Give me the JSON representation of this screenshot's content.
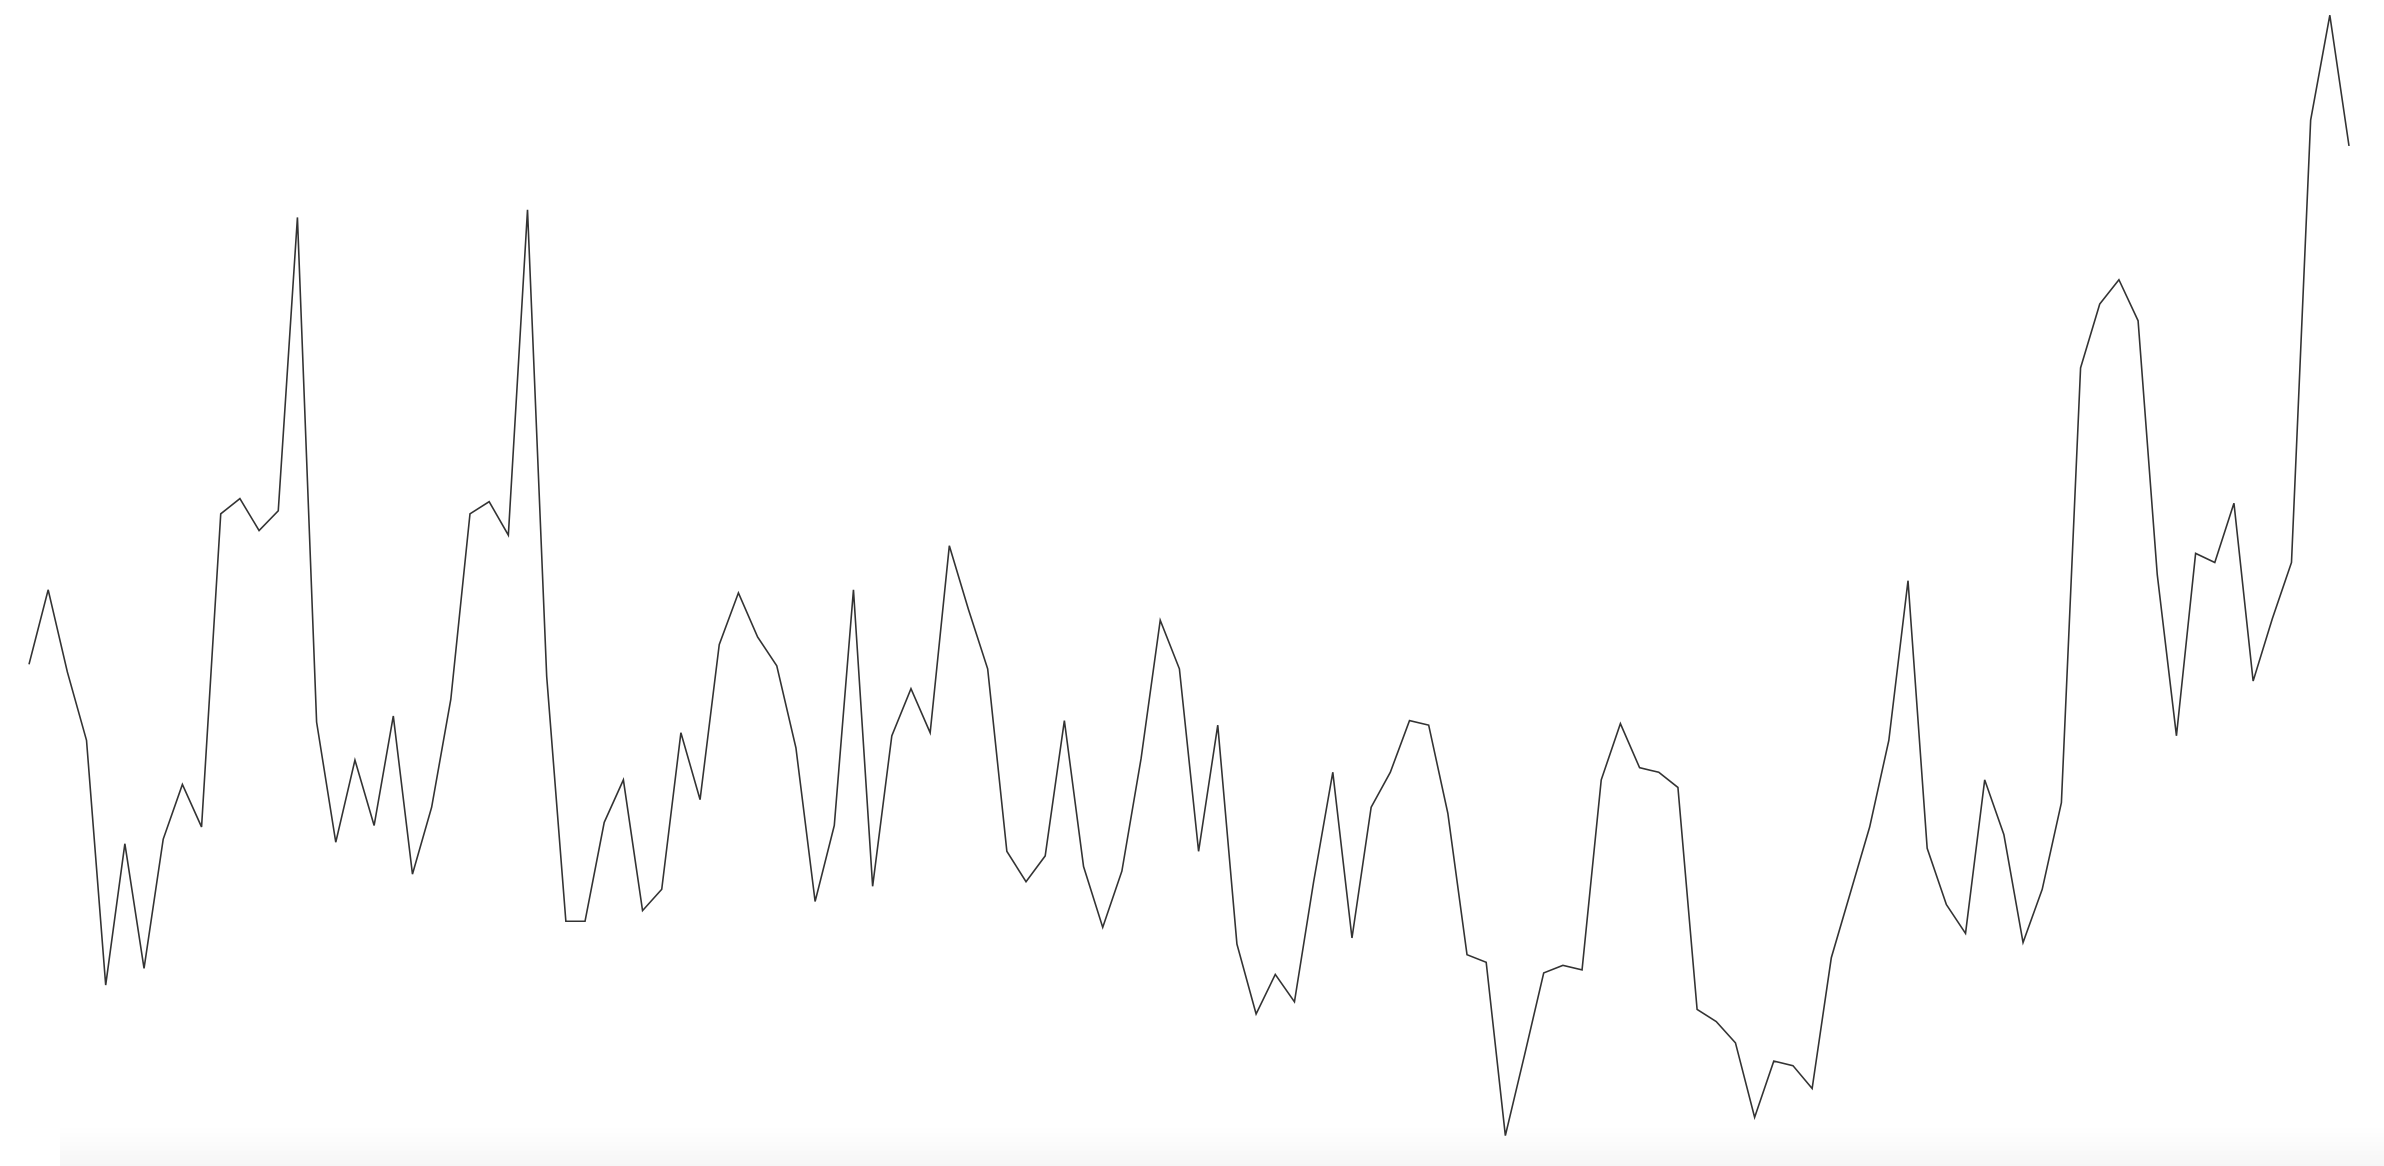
{
  "chart_data": {
    "type": "line",
    "color": "#333333",
    "ylim": [
      0,
      767
    ],
    "values": [
      330,
      379,
      325,
      280,
      119,
      212,
      130,
      215,
      251,
      223,
      429,
      439,
      418,
      431,
      624,
      292,
      213,
      267,
      224,
      296,
      192,
      236,
      307,
      429,
      437,
      415,
      629,
      322,
      161,
      161,
      226,
      254,
      168,
      182,
      285,
      241,
      343,
      377,
      348,
      329,
      275,
      174,
      224,
      379,
      184,
      283,
      314,
      285,
      408,
      366,
      327,
      207,
      187,
      204,
      293,
      197,
      157,
      194,
      268,
      359,
      327,
      207,
      290,
      146,
      100,
      126,
      108,
      187,
      259,
      150,
      236,
      259,
      293,
      290,
      232,
      139,
      134,
      20,
      73,
      127,
      132,
      129,
      254,
      291,
      262,
      259,
      249,
      103,
      95,
      81,
      32,
      69,
      66,
      51,
      137,
      180,
      223,
      280,
      385,
      209,
      172,
      153,
      254,
      218,
      147,
      182,
      239,
      525,
      567,
      583,
      556,
      389,
      283,
      403,
      397,
      436,
      319,
      360,
      397,
      688,
      757,
      671
    ]
  }
}
